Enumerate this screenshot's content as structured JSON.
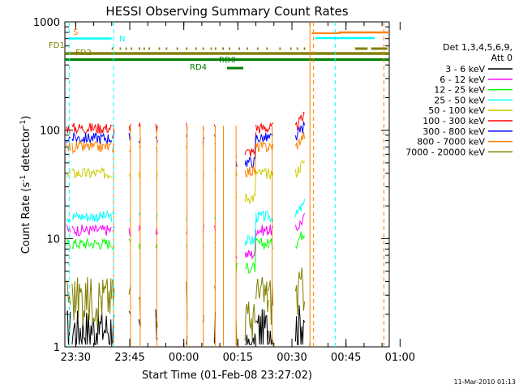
{
  "chart_data": {
    "type": "line",
    "title": "HESSI Observing Summary Count Rates",
    "xlabel": "Start Time (01-Feb-08 23:27:02)",
    "ylabel_parts": [
      "Count Rate (s",
      "-1",
      " detector",
      "-1",
      ")"
    ],
    "y_scale": "log",
    "ylim": [
      1,
      1000
    ],
    "y_ticks": [
      1,
      10,
      100,
      1000
    ],
    "x_range_min": [
      0,
      90
    ],
    "x_ticks": [
      {
        "min": 3,
        "label": "23:30"
      },
      {
        "min": 18,
        "label": "23:45"
      },
      {
        "min": 33,
        "label": "00:00"
      },
      {
        "min": 48,
        "label": "00:15"
      },
      {
        "min": 63,
        "label": "00:30"
      },
      {
        "min": 78,
        "label": "00:45"
      },
      {
        "min": 93,
        "label": "01:00"
      }
    ],
    "legend_header": [
      "Det 1,3,4,5,6,9,",
      "Att 0"
    ],
    "series": [
      {
        "name": "3 - 6 keV",
        "color": "#000000",
        "level": 1.5
      },
      {
        "name": "6 - 12 keV",
        "color": "#ff00ff",
        "level": 12
      },
      {
        "name": "12 - 25 keV",
        "color": "#00ff00",
        "level": 9
      },
      {
        "name": "25 - 50 keV",
        "color": "#00ffff",
        "level": 16
      },
      {
        "name": "50 - 100 keV",
        "color": "#cccc00",
        "level": 40
      },
      {
        "name": "100 - 300 keV",
        "color": "#ff0000",
        "level": 105
      },
      {
        "name": "300 - 800 keV",
        "color": "#0000ff",
        "level": 85
      },
      {
        "name": "800 - 7000 keV",
        "color": "#ff8000",
        "level": 70
      },
      {
        "name": "7000 - 20000 keV",
        "color": "#808000",
        "level": 3
      }
    ],
    "flags": [
      {
        "label": "S",
        "color": "#ff8000"
      },
      {
        "label": "N",
        "color": "#00ffff"
      },
      {
        "label": "FD1",
        "color": "#808000"
      },
      {
        "label": "FD2",
        "color": "#808000"
      },
      {
        "label": "RD0",
        "color": "#008000"
      },
      {
        "label": "RD4",
        "color": "#008000"
      }
    ],
    "grid": false,
    "legend_placement": "right"
  },
  "footer_date": "11-Mar-2010 01:13"
}
